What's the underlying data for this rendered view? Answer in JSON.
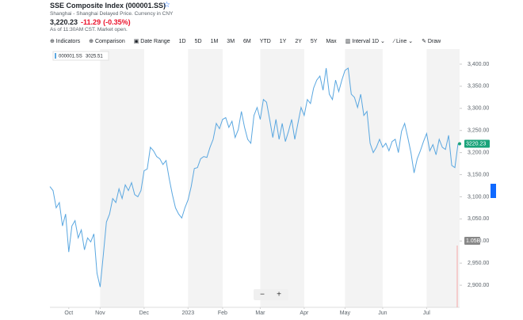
{
  "header": {
    "title": "SSE Composite Index (000001.SS)",
    "subtitle": "Shanghai - Shanghai Delayed Price. Currency in CNY",
    "price": "3,220.23",
    "change": "-11.29",
    "change_pct": "(-0.35%)",
    "as_of": "As of 11:30AM CST. Market open."
  },
  "toolbar": [
    "⊕ Indicators",
    "⊕ Comparison",
    "▣ Date Range",
    "1D",
    "5D",
    "1M",
    "3M",
    "6M",
    "YTD",
    "1Y",
    "2Y",
    "5Y",
    "Max",
    "▥ Interval 1D ⌄",
    "∕ Line ⌄",
    "✎ Draw"
  ],
  "chart_data": {
    "type": "line",
    "series": [
      {
        "name": "000001.SS",
        "color": "#5aa7e0",
        "values": [
          3123,
          3114,
          3075,
          3087,
          3034,
          3061,
          2975,
          3034,
          3046,
          3007,
          3025,
          2980,
          3007,
          2998,
          3016,
          2927,
          2896,
          2968,
          3043,
          3061,
          3096,
          3087,
          3118,
          3096,
          3127,
          3114,
          3132,
          3105,
          3100,
          3114,
          3159,
          3163,
          3212,
          3204,
          3191,
          3186,
          3173,
          3182,
          3141,
          3105,
          3075,
          3061,
          3052,
          3075,
          3093,
          3123,
          3164,
          3166,
          3186,
          3191,
          3189,
          3212,
          3230,
          3266,
          3254,
          3275,
          3279,
          3257,
          3271,
          3234,
          3252,
          3293,
          3257,
          3230,
          3221,
          3284,
          3302,
          3275,
          3320,
          3314,
          3275,
          3234,
          3275,
          3230,
          3266,
          3225,
          3248,
          3275,
          3230,
          3266,
          3302,
          3284,
          3320,
          3311,
          3346,
          3364,
          3373,
          3341,
          3391,
          3332,
          3320,
          3364,
          3338,
          3364,
          3386,
          3391,
          3332,
          3325,
          3302,
          3332,
          3284,
          3293,
          3221,
          3200,
          3212,
          3230,
          3212,
          3221,
          3204,
          3225,
          3230,
          3200,
          3248,
          3266,
          3234,
          3200,
          3154,
          3186,
          3204,
          3225,
          3243,
          3204,
          3218,
          3195,
          3230,
          3212,
          3207,
          3239,
          3171,
          3166,
          3220
        ]
      }
    ],
    "legend_value": "3025.51",
    "last_price": "3220.23",
    "volume_label": "1.05B",
    "xlim": [
      0,
      130
    ],
    "xticks": [
      {
        "value": 6,
        "label": "Oct"
      },
      {
        "value": 16,
        "label": "Nov"
      },
      {
        "value": 30,
        "label": "Dec"
      },
      {
        "value": 44,
        "label": "2023"
      },
      {
        "value": 55,
        "label": "Feb"
      },
      {
        "value": 67,
        "label": "Mar"
      },
      {
        "value": 81,
        "label": "Apr"
      },
      {
        "value": 94,
        "label": "May"
      },
      {
        "value": 106,
        "label": "Jun"
      },
      {
        "value": 120,
        "label": "Jul"
      }
    ],
    "ylim": [
      2850,
      3434
    ],
    "yticks": [
      {
        "value": 2900,
        "label": "2,900.00"
      },
      {
        "value": 2950,
        "label": "2,950.00"
      },
      {
        "value": 3000,
        "label": "3,000.00"
      },
      {
        "value": 3050,
        "label": "3,050.00"
      },
      {
        "value": 3100,
        "label": "3,100.00"
      },
      {
        "value": 3150,
        "label": "3,150.00"
      },
      {
        "value": 3200,
        "label": "3,200.00"
      },
      {
        "value": 3250,
        "label": "3,250.00"
      },
      {
        "value": 3300,
        "label": "3,300.00"
      },
      {
        "value": 3350,
        "label": "3,350.00"
      },
      {
        "value": 3400,
        "label": "3,400.00"
      }
    ]
  }
}
